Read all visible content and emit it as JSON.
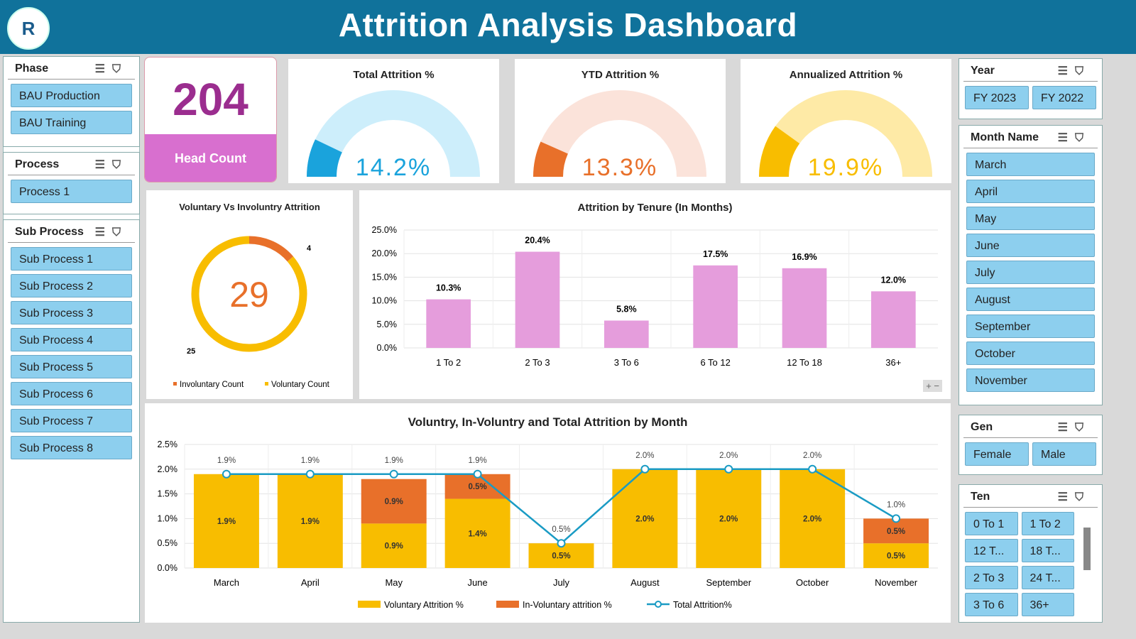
{
  "header": {
    "title": "Attrition Analysis Dashboard",
    "logo_text": "R"
  },
  "slicers": {
    "phase": {
      "title": "Phase",
      "items": [
        "BAU Production",
        "BAU Training"
      ]
    },
    "process": {
      "title": "Process",
      "items": [
        "Process 1"
      ]
    },
    "sub_process": {
      "title": "Sub Process",
      "items": [
        "Sub Process 1",
        "Sub Process 2",
        "Sub Process 3",
        "Sub Process 4",
        "Sub Process 5",
        "Sub Process 6",
        "Sub Process 7",
        "Sub Process 8"
      ]
    },
    "year": {
      "title": "Year",
      "items": [
        "FY 2023",
        "FY 2022"
      ]
    },
    "month": {
      "title": "Month Name",
      "items": [
        "March",
        "April",
        "May",
        "June",
        "July",
        "August",
        "September",
        "October",
        "November"
      ]
    },
    "gen": {
      "title": "Gen",
      "items": [
        "Female",
        "Male"
      ]
    },
    "ten": {
      "title": "Ten",
      "items": [
        "0 To 1",
        "1 To 2",
        "12 T...",
        "18 T...",
        "2 To 3",
        "24 T...",
        "3 To 6",
        "36+"
      ]
    }
  },
  "kpi": {
    "head_count": "204",
    "head_count_label": "Head Count"
  },
  "gauges": [
    {
      "title": "Total Attrition %",
      "value_text": "14.2%",
      "value": 14.2,
      "color": "#1aa3dc",
      "track": "#cdeefb"
    },
    {
      "title": "YTD Attrition %",
      "value_text": "13.3%",
      "value": 13.3,
      "color": "#e8702a",
      "track": "#fbe3da"
    },
    {
      "title": "Annualized Attrition %",
      "value_text": "19.9%",
      "value": 19.9,
      "color": "#f8bd00",
      "track": "#feeaa6"
    }
  ],
  "chart_data": [
    {
      "type": "pie",
      "title": "Voluntary Vs Involuntry Attrition",
      "center_label": "29",
      "categories": [
        "Involuntary Count",
        "Voluntary Count"
      ],
      "values": [
        4,
        25
      ],
      "colors": [
        "#e8702a",
        "#f8bd00"
      ],
      "legend": "bottom"
    },
    {
      "type": "bar",
      "title": "Attrition by Tenure (In Months)",
      "categories": [
        "1 To 2",
        "2 To 3",
        "3 To 6",
        "6 To 12",
        "12 To 18",
        "36+"
      ],
      "values": [
        10.3,
        20.4,
        5.8,
        17.5,
        16.9,
        12.0
      ],
      "labels": [
        "10.3%",
        "20.4%",
        "5.8%",
        "17.5%",
        "16.9%",
        "12.0%"
      ],
      "ylim": [
        0,
        25
      ],
      "yticks": [
        "0.0%",
        "5.0%",
        "10.0%",
        "15.0%",
        "20.0%",
        "25.0%"
      ],
      "color": "#e59ddc",
      "grid": true
    },
    {
      "type": "bar",
      "stacked": true,
      "title": "Voluntry, In-Voluntry and Total Attrition by Month",
      "categories": [
        "March",
        "April",
        "May",
        "June",
        "July",
        "August",
        "September",
        "October",
        "November"
      ],
      "ylim": [
        0,
        2.5
      ],
      "yticks": [
        "0.0%",
        "0.5%",
        "1.0%",
        "1.5%",
        "2.0%",
        "2.5%"
      ],
      "grid": true,
      "legend": "bottom",
      "series": [
        {
          "name": "Voluntary Attrition %",
          "type": "bar",
          "color": "#f8bd00",
          "values": [
            1.9,
            1.9,
            0.9,
            1.4,
            0.5,
            2.0,
            2.0,
            2.0,
            0.5
          ],
          "labels": [
            "1.9%",
            "1.9%",
            "0.9%",
            "1.4%",
            "0.5%",
            "2.0%",
            "2.0%",
            "2.0%",
            "0.5%"
          ]
        },
        {
          "name": "In-Voluntary attrition %",
          "type": "bar",
          "color": "#e8702a",
          "values": [
            0,
            0,
            0.9,
            0.5,
            0,
            0,
            0,
            0,
            0.5
          ],
          "labels": [
            "",
            "",
            "0.9%",
            "0.5%",
            "",
            "",
            "",
            "",
            "0.5%"
          ]
        },
        {
          "name": "Total Attrition%",
          "type": "line",
          "color": "#1a9bc4",
          "values": [
            1.9,
            1.9,
            1.9,
            1.9,
            0.5,
            2.0,
            2.0,
            2.0,
            1.0
          ],
          "labels": [
            "1.9%",
            "1.9%",
            "1.9%",
            "1.9%",
            "0.5%",
            "2.0%",
            "2.0%",
            "2.0%",
            "1.0%"
          ]
        }
      ]
    }
  ]
}
